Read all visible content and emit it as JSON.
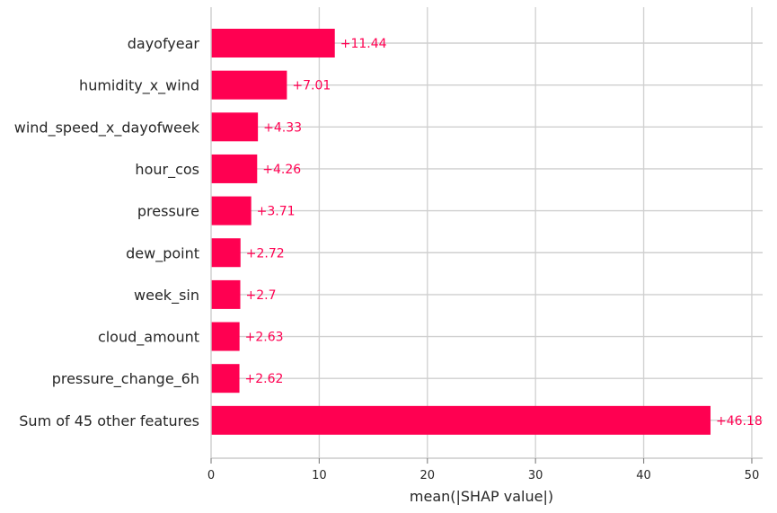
{
  "chart_data": {
    "type": "bar",
    "orientation": "horizontal",
    "title": "",
    "xlabel": "mean(|SHAP value|)",
    "ylabel": "",
    "xlim": [
      0,
      51
    ],
    "xticks": [
      0,
      10,
      20,
      30,
      40,
      50
    ],
    "grid": true,
    "bar_color": "#ff0051",
    "categories": [
      "dayofyear",
      "humidity_x_wind",
      "wind_speed_x_dayofweek",
      "hour_cos",
      "pressure",
      "dew_point",
      "week_sin",
      "cloud_amount",
      "pressure_change_6h",
      "Sum of 45 other features"
    ],
    "values": [
      11.44,
      7.01,
      4.33,
      4.26,
      3.71,
      2.72,
      2.7,
      2.63,
      2.62,
      46.18
    ],
    "value_labels": [
      "+11.44",
      "+7.01",
      "+4.33",
      "+4.26",
      "+3.71",
      "+2.72",
      "+2.7",
      "+2.63",
      "+2.62",
      "+46.18"
    ]
  }
}
